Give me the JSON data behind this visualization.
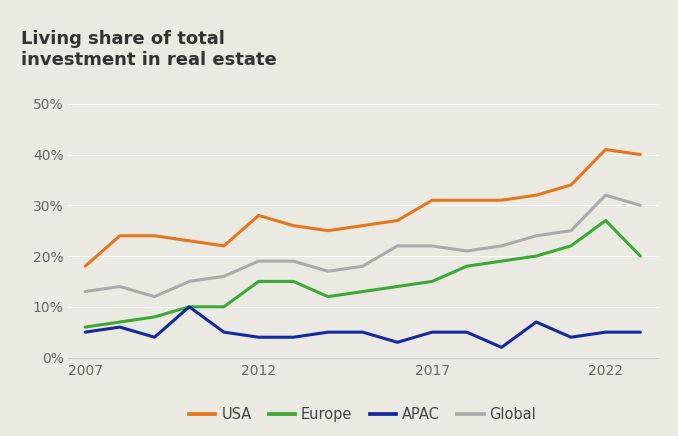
{
  "title": "Living share of total\ninvestment in real estate",
  "years": [
    2007,
    2008,
    2009,
    2010,
    2011,
    2012,
    2013,
    2014,
    2015,
    2016,
    2017,
    2018,
    2019,
    2020,
    2021,
    2022,
    2023
  ],
  "USA": [
    18,
    24,
    24,
    23,
    22,
    28,
    26,
    25,
    26,
    27,
    31,
    31,
    31,
    32,
    34,
    41,
    40
  ],
  "Europe": [
    6,
    7,
    8,
    10,
    10,
    15,
    15,
    12,
    13,
    14,
    15,
    18,
    19,
    20,
    22,
    27,
    20
  ],
  "APAC": [
    5,
    6,
    4,
    10,
    5,
    4,
    4,
    5,
    5,
    3,
    5,
    5,
    2,
    7,
    4,
    5,
    5
  ],
  "Global": [
    13,
    14,
    12,
    15,
    16,
    19,
    19,
    17,
    18,
    22,
    22,
    21,
    22,
    24,
    25,
    32,
    30
  ],
  "colors": {
    "USA": "#e8751a",
    "Europe": "#3aaa35",
    "APAC": "#1428a0",
    "Global": "#aaaaaa"
  },
  "ylim": [
    0,
    55
  ],
  "yticks": [
    0,
    10,
    20,
    30,
    40,
    50
  ],
  "ytick_labels": [
    "0%",
    "10%",
    "20%",
    "30%",
    "40%",
    "50%"
  ],
  "xticks": [
    2007,
    2012,
    2017,
    2022
  ],
  "xlim": [
    2006.5,
    2023.5
  ],
  "background_color": "#eaeae3",
  "line_width": 2.2,
  "legend_labels": [
    "USA",
    "Europe",
    "APAC",
    "Global"
  ],
  "title_fontsize": 13,
  "tick_fontsize": 10,
  "legend_fontsize": 10.5
}
